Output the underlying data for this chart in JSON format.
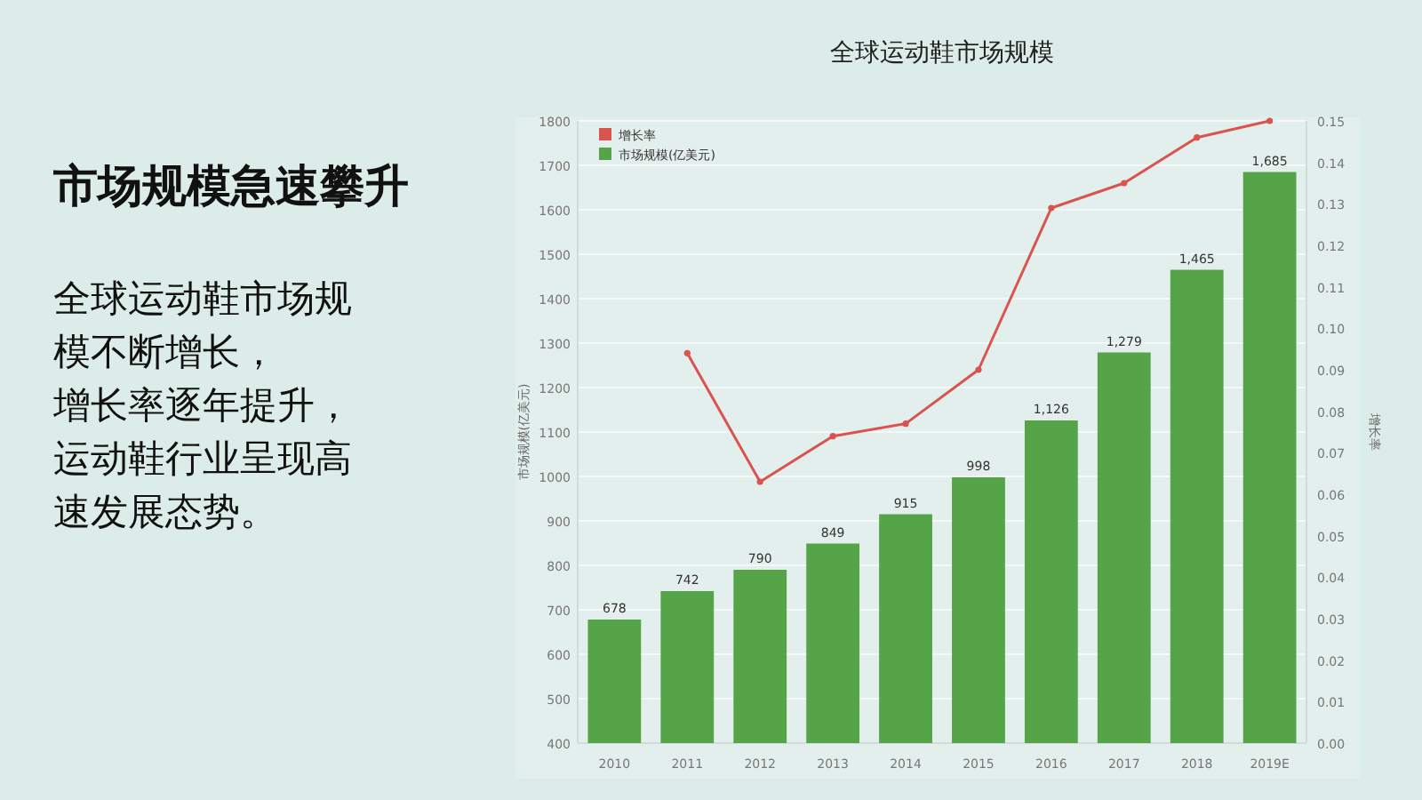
{
  "chart_data": {
    "type": "bar",
    "title": "全球运动鞋市场规模",
    "ylabel": "市场规模(亿美元)",
    "y2label": "增长率",
    "annotations": [
      "市场规模急速攀升",
      "全球运动鞋市场规",
      "模不断增长，",
      "增长率逐年提升，",
      "运动鞋行业呈现高",
      "速发展态势。"
    ],
    "categories": [
      "2010",
      "2011",
      "2012",
      "2013",
      "2014",
      "2015",
      "2016",
      "2017",
      "2018",
      "2019E"
    ],
    "series": [
      {
        "name": "市场规模(亿美元)",
        "color": "#55a447",
        "values": [
          678,
          742,
          790,
          849,
          915,
          998,
          1126,
          1279,
          1465,
          1685
        ],
        "value_labels": [
          "678",
          "742",
          "790",
          "849",
          "915",
          "998",
          "1,126",
          "1,279",
          "1,465",
          "1,685"
        ]
      },
      {
        "name": "增长率",
        "type": "line",
        "axis": "y2",
        "color": "#d9534f",
        "marker": "circle",
        "values": [
          null,
          0.094,
          0.063,
          0.074,
          0.077,
          0.09,
          0.129,
          0.135,
          0.146,
          0.15
        ]
      }
    ],
    "ylim": [
      400,
      1800
    ],
    "yticks": [
      400,
      500,
      600,
      700,
      800,
      900,
      1000,
      1100,
      1200,
      1300,
      1400,
      1500,
      1600,
      1700,
      1800
    ],
    "y2lim": [
      0,
      0.15
    ],
    "y2ticks": [
      {
        "value": 0,
        "label": "0.00"
      },
      {
        "value": 0.01,
        "label": "0.01"
      },
      {
        "value": 0.02,
        "label": "0.02"
      },
      {
        "value": 0.03,
        "label": "0.03"
      },
      {
        "value": 0.04,
        "label": "0.04"
      },
      {
        "value": 0.05,
        "label": "0.05"
      },
      {
        "value": 0.06,
        "label": "0.06"
      },
      {
        "value": 0.07,
        "label": "0.07"
      },
      {
        "value": 0.08,
        "label": "0.08"
      },
      {
        "value": 0.09,
        "label": "0.09"
      },
      {
        "value": 0.1,
        "label": "0.10"
      },
      {
        "value": 0.11,
        "label": "0.11"
      },
      {
        "value": 0.12,
        "label": "0.12"
      },
      {
        "value": 0.13,
        "label": "0.13"
      },
      {
        "value": 0.14,
        "label": "0.14"
      },
      {
        "value": 0.15,
        "label": "0.15"
      }
    ],
    "grid": "y",
    "legend": "top left"
  }
}
